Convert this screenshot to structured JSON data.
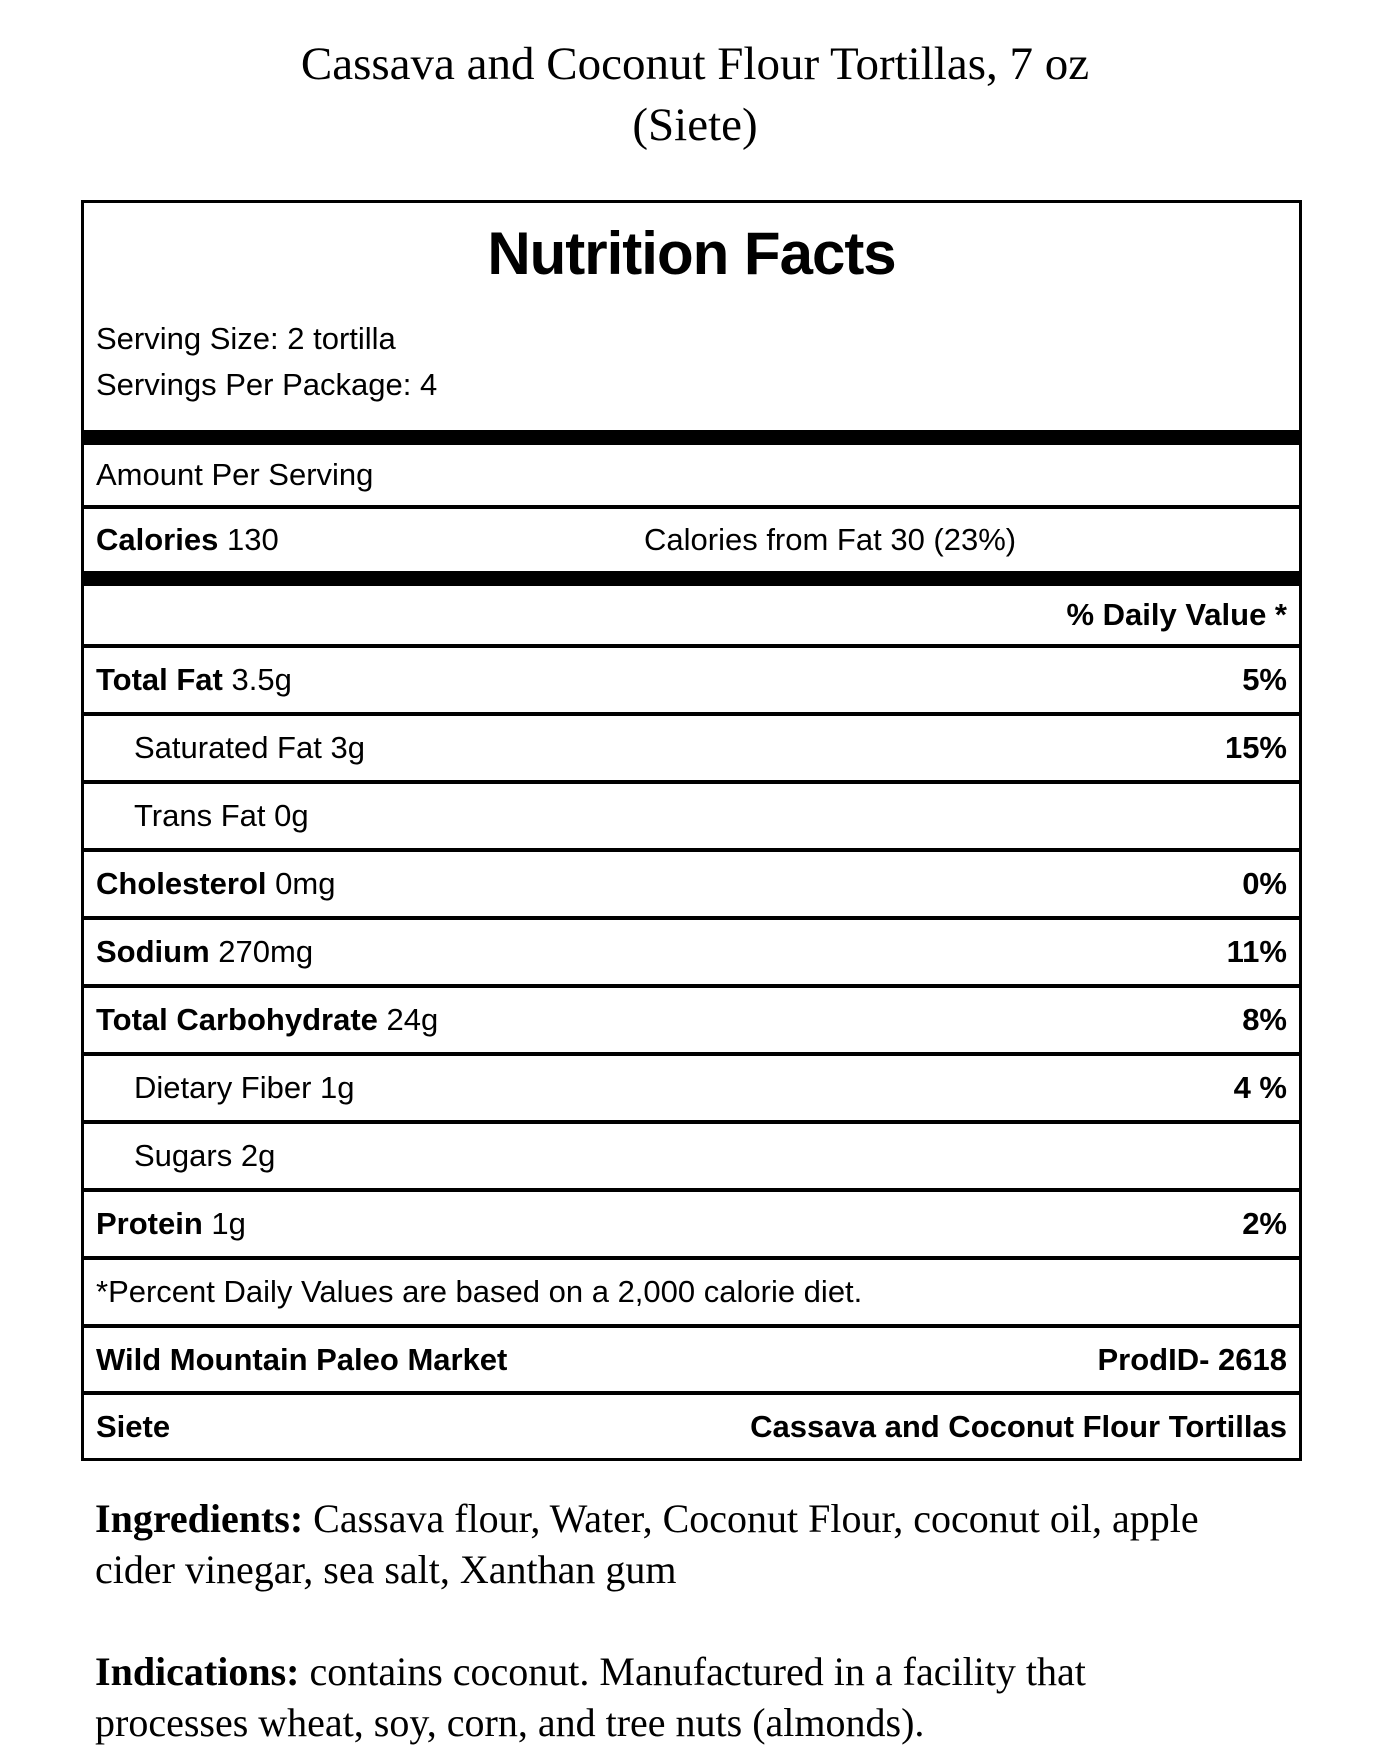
{
  "page_title": {
    "line1": "Cassava and Coconut Flour Tortillas, 7 oz",
    "line2": "(Siete)"
  },
  "label": {
    "heading": "Nutrition Facts",
    "serving_size": "Serving Size: 2 tortilla",
    "servings_per_package": "Servings Per Package: 4",
    "amount_per_serving": "Amount Per Serving",
    "calories_label": "Calories",
    "calories_value": " 130",
    "calories_from_fat": "Calories from Fat 30 (23%)",
    "daily_value_header": "% Daily Value *",
    "rows": [
      {
        "name": "Total Fat",
        "amount": " 3.5g",
        "dv": "5%"
      },
      {
        "name": "Saturated Fat",
        "amount": " 3g",
        "dv": "15%"
      },
      {
        "name": "Trans Fat",
        "amount": " 0g",
        "dv": ""
      },
      {
        "name": "Cholesterol",
        "amount": " 0mg",
        "dv": "0%"
      },
      {
        "name": "Sodium",
        "amount": " 270mg",
        "dv": "11%"
      },
      {
        "name": "Total Carbohydrate",
        "amount": " 24g",
        "dv": "8%"
      },
      {
        "name": "Dietary Fiber",
        "amount": " 1g",
        "dv": "4 %"
      },
      {
        "name": "Sugars",
        "amount": " 2g",
        "dv": ""
      },
      {
        "name": "Protein",
        "amount": " 1g",
        "dv": "2%"
      }
    ],
    "footnote": "*Percent Daily Values are based on a 2,000 calorie diet.",
    "vendor": "Wild Mountain Paleo Market",
    "prod_id": "ProdID- 2618",
    "brand": "Siete",
    "product_name": "Cassava and Coconut Flour Tortillas"
  },
  "ingredients": {
    "label": "Ingredients:",
    "line1_rest": " Cassava flour, Water, Coconut Flour, coconut oil, apple",
    "line2": "cider vinegar, sea salt, Xanthan gum"
  },
  "indications": {
    "label": "Indications:",
    "line1_rest": " contains coconut. Manufactured in a facility that",
    "line2": "processes wheat, soy, corn, and tree nuts (almonds)."
  }
}
